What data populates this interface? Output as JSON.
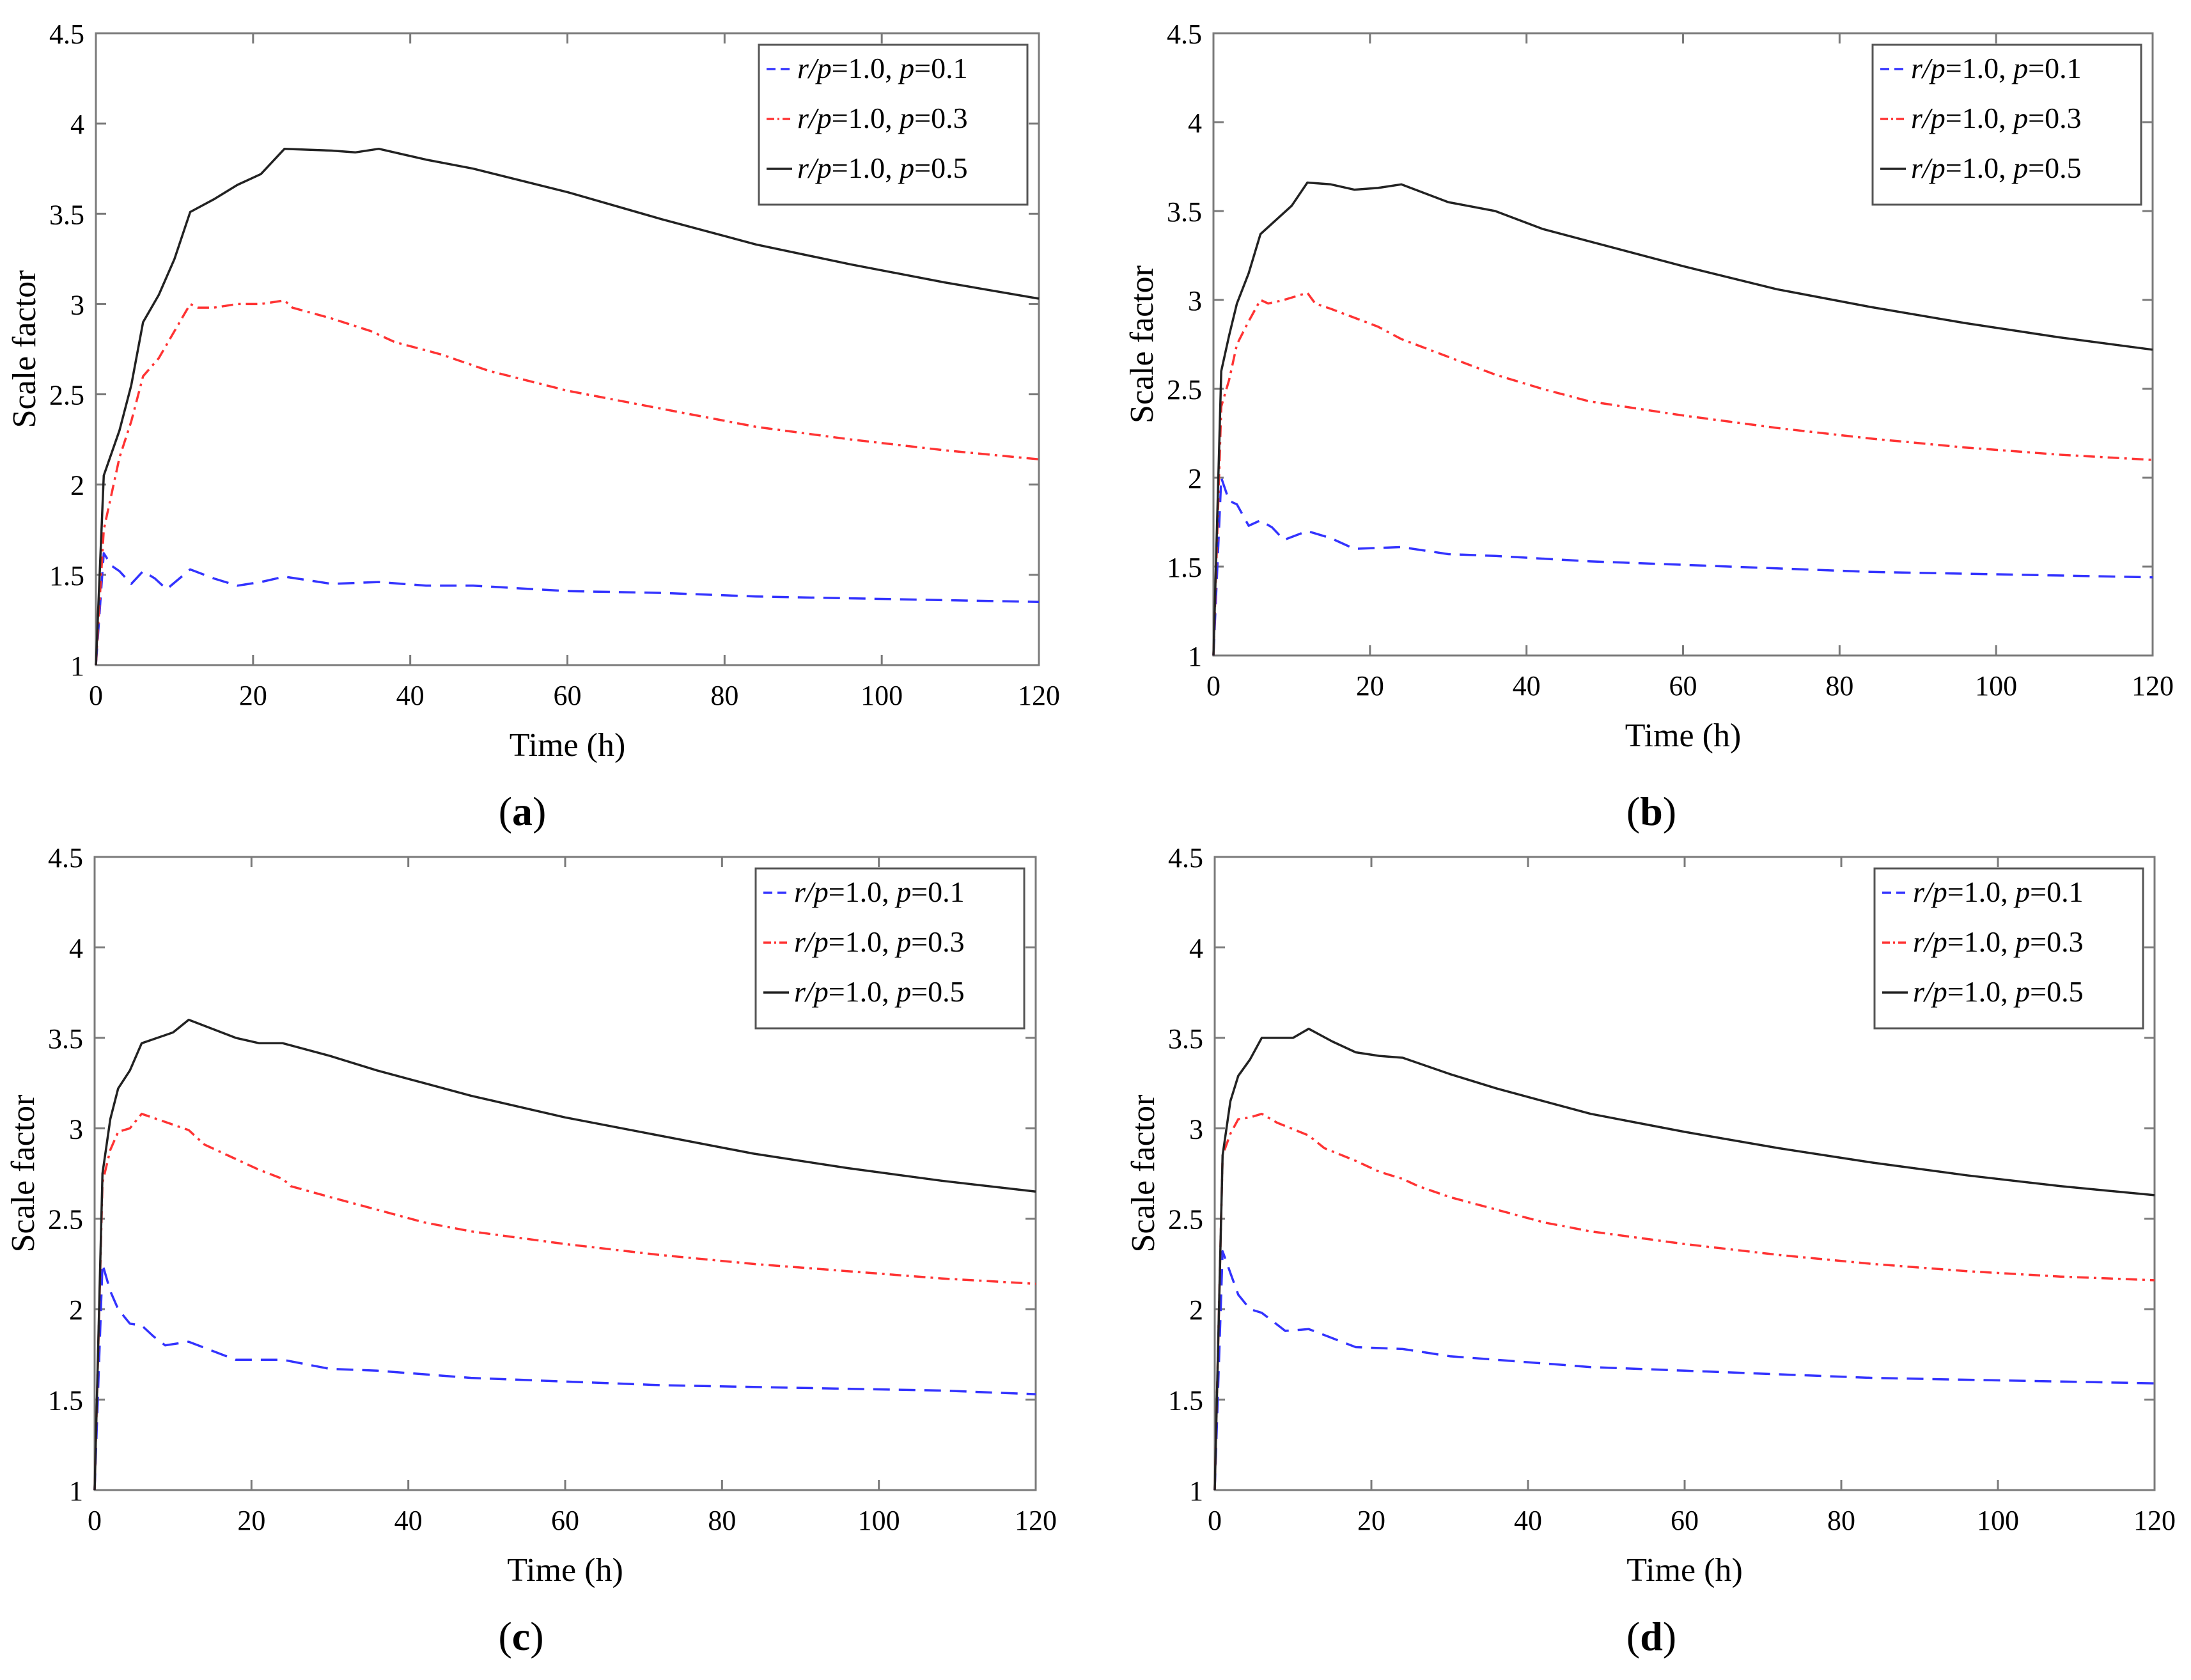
{
  "figure": {
    "captions": [
      {
        "open": "(",
        "letter": "a",
        "close": ")"
      },
      {
        "open": "(",
        "letter": "b",
        "close": ")"
      },
      {
        "open": "(",
        "letter": "c",
        "close": ")"
      },
      {
        "open": "(",
        "letter": "d",
        "close": ")"
      }
    ]
  },
  "chart_data": [
    {
      "type": "line",
      "panel": "a",
      "xlabel": "Time (h)",
      "ylabel": "Scale factor",
      "xlim": [
        0,
        120
      ],
      "ylim": [
        1,
        4.5
      ],
      "xticks": [
        "0",
        "20",
        "40",
        "60",
        "80",
        "100",
        "120"
      ],
      "yticks": [
        "1",
        "1.5",
        "2",
        "2.5",
        "3",
        "3.5",
        "4",
        "4.5"
      ],
      "legend_position": "top-right",
      "series": [
        {
          "name": "r/p=1.0, p=0.1",
          "label_parts": [
            "r",
            "/",
            "p",
            "=1.0, ",
            "p",
            "=0.1"
          ],
          "color": "#3333ff",
          "dash": "dashed",
          "x": [
            0,
            1,
            2,
            3,
            4.5,
            6,
            7.5,
            9,
            12,
            15,
            18,
            21,
            24,
            30,
            36,
            42,
            48,
            60,
            72,
            84,
            96,
            108,
            120
          ],
          "y": [
            1.0,
            1.62,
            1.55,
            1.52,
            1.45,
            1.52,
            1.48,
            1.42,
            1.53,
            1.48,
            1.44,
            1.46,
            1.49,
            1.45,
            1.46,
            1.44,
            1.44,
            1.41,
            1.4,
            1.38,
            1.37,
            1.36,
            1.35
          ]
        },
        {
          "name": "r/p=1.0, p=0.3",
          "label_parts": [
            "r",
            "/",
            "p",
            "=1.0, ",
            "p",
            "=0.3"
          ],
          "color": "#ff3333",
          "dash": "dashdot",
          "x": [
            0,
            1,
            3,
            4.5,
            6,
            8,
            10,
            12,
            13,
            15,
            18,
            21,
            24,
            25,
            30,
            35,
            38,
            44,
            50,
            60,
            72,
            84,
            96,
            108,
            120
          ],
          "y": [
            1.0,
            1.75,
            2.15,
            2.35,
            2.6,
            2.7,
            2.85,
            3.0,
            2.98,
            2.98,
            3.0,
            3.0,
            3.02,
            2.98,
            2.92,
            2.85,
            2.79,
            2.72,
            2.63,
            2.52,
            2.42,
            2.32,
            2.25,
            2.19,
            2.14
          ]
        },
        {
          "name": "r/p=1.0, p=0.5",
          "label_parts": [
            "r",
            "/",
            "p",
            "=1.0, ",
            "p",
            "=0.5"
          ],
          "color": "#222222",
          "dash": "solid",
          "x": [
            0,
            1,
            3,
            4.5,
            6,
            8,
            10,
            12,
            15,
            18,
            21,
            24,
            30,
            33,
            36,
            42,
            48,
            60,
            72,
            84,
            96,
            108,
            120
          ],
          "y": [
            1.0,
            2.05,
            2.3,
            2.55,
            2.9,
            3.05,
            3.25,
            3.51,
            3.58,
            3.66,
            3.72,
            3.86,
            3.85,
            3.84,
            3.86,
            3.8,
            3.75,
            3.62,
            3.47,
            3.33,
            3.22,
            3.12,
            3.03
          ]
        }
      ]
    },
    {
      "type": "line",
      "panel": "b",
      "xlabel": "Time (h)",
      "ylabel": "Scale factor",
      "xlim": [
        0,
        120
      ],
      "ylim": [
        1,
        4.5
      ],
      "xticks": [
        "0",
        "20",
        "40",
        "60",
        "80",
        "100",
        "120"
      ],
      "yticks": [
        "1",
        "1.5",
        "2",
        "2.5",
        "3",
        "3.5",
        "4",
        "4.5"
      ],
      "legend_position": "top-right",
      "series": [
        {
          "name": "r/p=1.0, p=0.1",
          "label_parts": [
            "r",
            "/",
            "p",
            "=1.0, ",
            "p",
            "=0.1"
          ],
          "color": "#3333ff",
          "dash": "dashed",
          "x": [
            0,
            1,
            2,
            3,
            4.5,
            6,
            7.5,
            9,
            12,
            15,
            18,
            24,
            30,
            36,
            48,
            60,
            72,
            84,
            96,
            108,
            120
          ],
          "y": [
            1.0,
            2.0,
            1.87,
            1.85,
            1.73,
            1.76,
            1.72,
            1.65,
            1.7,
            1.66,
            1.6,
            1.61,
            1.57,
            1.56,
            1.53,
            1.51,
            1.49,
            1.47,
            1.46,
            1.45,
            1.44
          ]
        },
        {
          "name": "r/p=1.0, p=0.3",
          "label_parts": [
            "r",
            "/",
            "p",
            "=1.0, ",
            "p",
            "=0.3"
          ],
          "color": "#ff3333",
          "dash": "dashdot",
          "x": [
            0,
            1,
            2,
            3,
            4.5,
            6,
            7,
            9,
            12,
            13,
            15,
            18,
            21,
            24,
            30,
            36,
            42,
            48,
            60,
            72,
            84,
            96,
            108,
            120
          ],
          "y": [
            1.0,
            2.4,
            2.55,
            2.75,
            2.88,
            3.0,
            2.98,
            3.0,
            3.04,
            2.98,
            2.95,
            2.9,
            2.85,
            2.78,
            2.68,
            2.58,
            2.5,
            2.43,
            2.35,
            2.28,
            2.22,
            2.17,
            2.13,
            2.1
          ]
        },
        {
          "name": "r/p=1.0, p=0.5",
          "label_parts": [
            "r",
            "/",
            "p",
            "=1.0, ",
            "p",
            "=0.5"
          ],
          "color": "#222222",
          "dash": "solid",
          "x": [
            0,
            1,
            2,
            3,
            4.5,
            6,
            8,
            10,
            12,
            15,
            18,
            21,
            24,
            30,
            36,
            42,
            48,
            60,
            72,
            84,
            96,
            108,
            120
          ],
          "y": [
            1.0,
            2.6,
            2.8,
            2.98,
            3.15,
            3.37,
            3.45,
            3.53,
            3.66,
            3.65,
            3.62,
            3.63,
            3.65,
            3.55,
            3.5,
            3.4,
            3.33,
            3.19,
            3.06,
            2.96,
            2.87,
            2.79,
            2.72
          ]
        }
      ]
    },
    {
      "type": "line",
      "panel": "c",
      "xlabel": "Time (h)",
      "ylabel": "Scale factor",
      "xlim": [
        0,
        120
      ],
      "ylim": [
        1,
        4.5
      ],
      "xticks": [
        "0",
        "20",
        "40",
        "60",
        "80",
        "100",
        "120"
      ],
      "yticks": [
        "1",
        "1.5",
        "2",
        "2.5",
        "3",
        "3.5",
        "4",
        "4.5"
      ],
      "legend_position": "top-right",
      "series": [
        {
          "name": "r/p=1.0, p=0.1",
          "label_parts": [
            "r",
            "/",
            "p",
            "=1.0, ",
            "p",
            "=0.1"
          ],
          "color": "#3333ff",
          "dash": "dashed",
          "x": [
            0,
            1,
            2,
            3,
            4.5,
            6,
            7.5,
            9,
            12,
            15,
            18,
            24,
            30,
            36,
            48,
            60,
            72,
            84,
            96,
            108,
            120
          ],
          "y": [
            1.0,
            2.25,
            2.1,
            2.0,
            1.92,
            1.91,
            1.85,
            1.8,
            1.82,
            1.77,
            1.72,
            1.72,
            1.67,
            1.66,
            1.62,
            1.6,
            1.58,
            1.57,
            1.56,
            1.55,
            1.53
          ]
        },
        {
          "name": "r/p=1.0, p=0.3",
          "label_parts": [
            "r",
            "/",
            "p",
            "=1.0, ",
            "p",
            "=0.3"
          ],
          "color": "#ff3333",
          "dash": "dashdot",
          "x": [
            0,
            1,
            2,
            3,
            4.5,
            6,
            8,
            12,
            14,
            18,
            21,
            24,
            25,
            30,
            36,
            42,
            48,
            60,
            72,
            84,
            96,
            108,
            120
          ],
          "y": [
            1.0,
            2.7,
            2.88,
            2.98,
            3.0,
            3.08,
            3.05,
            2.99,
            2.91,
            2.83,
            2.77,
            2.72,
            2.68,
            2.62,
            2.55,
            2.48,
            2.43,
            2.36,
            2.3,
            2.25,
            2.21,
            2.17,
            2.14
          ]
        },
        {
          "name": "r/p=1.0, p=0.5",
          "label_parts": [
            "r",
            "/",
            "p",
            "=1.0, ",
            "p",
            "=0.5"
          ],
          "color": "#222222",
          "dash": "solid",
          "x": [
            0,
            1,
            2,
            3,
            4.5,
            6,
            8,
            10,
            12,
            15,
            18,
            21,
            24,
            30,
            36,
            42,
            48,
            60,
            72,
            84,
            96,
            108,
            120
          ],
          "y": [
            1.0,
            2.75,
            3.05,
            3.22,
            3.32,
            3.47,
            3.5,
            3.53,
            3.6,
            3.55,
            3.5,
            3.47,
            3.47,
            3.4,
            3.32,
            3.25,
            3.18,
            3.06,
            2.96,
            2.86,
            2.78,
            2.71,
            2.65
          ]
        }
      ]
    },
    {
      "type": "line",
      "panel": "d",
      "xlabel": "Time (h)",
      "ylabel": "Scale factor",
      "xlim": [
        0,
        120
      ],
      "ylim": [
        1,
        4.5
      ],
      "xticks": [
        "0",
        "20",
        "40",
        "60",
        "80",
        "100",
        "120"
      ],
      "yticks": [
        "1",
        "1.5",
        "2",
        "2.5",
        "3",
        "3.5",
        "4",
        "4.5"
      ],
      "legend_position": "top-right",
      "series": [
        {
          "name": "r/p=1.0, p=0.1",
          "label_parts": [
            "r",
            "/",
            "p",
            "=1.0, ",
            "p",
            "=0.1"
          ],
          "color": "#3333ff",
          "dash": "dashed",
          "x": [
            0,
            1,
            2,
            3,
            4.5,
            6,
            7.5,
            9,
            12,
            15,
            18,
            24,
            30,
            36,
            48,
            60,
            72,
            84,
            96,
            108,
            120
          ],
          "y": [
            1.0,
            2.32,
            2.2,
            2.08,
            2.0,
            1.98,
            1.93,
            1.88,
            1.89,
            1.84,
            1.79,
            1.78,
            1.74,
            1.72,
            1.68,
            1.66,
            1.64,
            1.62,
            1.61,
            1.6,
            1.59
          ]
        },
        {
          "name": "r/p=1.0, p=0.3",
          "label_parts": [
            "r",
            "/",
            "p",
            "=1.0, ",
            "p",
            "=0.3"
          ],
          "color": "#ff3333",
          "dash": "dashdot",
          "x": [
            0,
            1,
            2,
            3,
            4.5,
            6,
            8,
            12,
            14,
            18,
            21,
            24,
            26,
            30,
            36,
            42,
            48,
            60,
            72,
            84,
            96,
            108,
            120
          ],
          "y": [
            1.0,
            2.85,
            2.97,
            3.05,
            3.06,
            3.08,
            3.03,
            2.96,
            2.89,
            2.82,
            2.76,
            2.72,
            2.68,
            2.62,
            2.55,
            2.48,
            2.43,
            2.36,
            2.3,
            2.25,
            2.21,
            2.18,
            2.16
          ]
        },
        {
          "name": "r/p=1.0, p=0.5",
          "label_parts": [
            "r",
            "/",
            "p",
            "=1.0, ",
            "p",
            "=0.5"
          ],
          "color": "#222222",
          "dash": "solid",
          "x": [
            0,
            1,
            2,
            3,
            4.5,
            6,
            8,
            10,
            12,
            15,
            18,
            21,
            24,
            30,
            36,
            42,
            48,
            60,
            72,
            84,
            96,
            108,
            120
          ],
          "y": [
            1.0,
            2.85,
            3.15,
            3.29,
            3.38,
            3.5,
            3.5,
            3.5,
            3.55,
            3.48,
            3.42,
            3.4,
            3.39,
            3.3,
            3.22,
            3.15,
            3.08,
            2.98,
            2.89,
            2.81,
            2.74,
            2.68,
            2.63
          ]
        }
      ]
    }
  ]
}
